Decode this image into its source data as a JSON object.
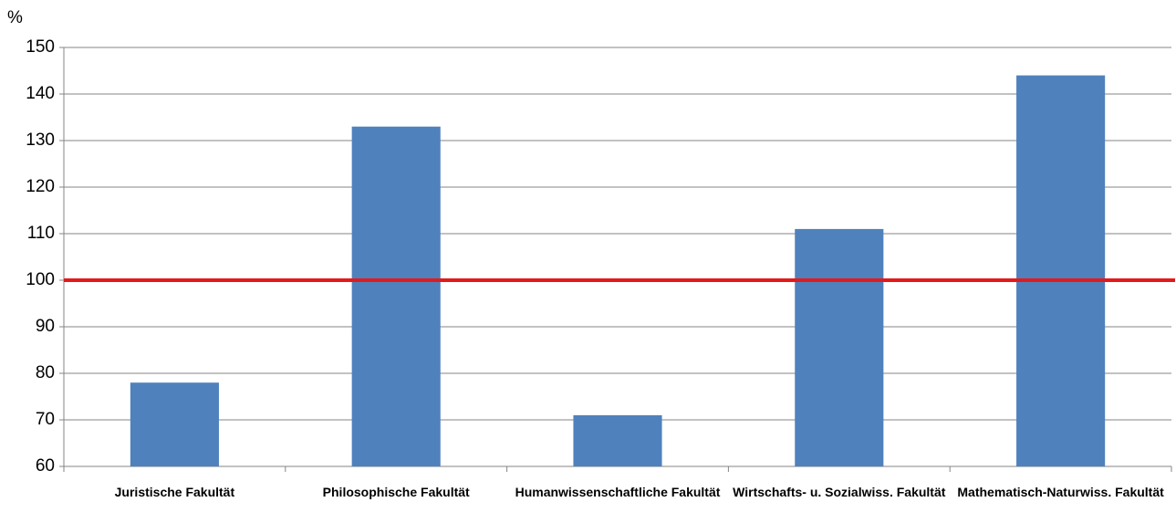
{
  "chart_data": {
    "type": "bar",
    "y_axis_label": "%",
    "categories": [
      "Juristische Fakultät",
      "Philosophische Fakultät",
      "Humanwissenschaftliche Fakultät",
      "Wirtschafts- u. Sozialwiss. Fakultät",
      "Mathematisch-Naturwiss. Fakultät"
    ],
    "values": [
      78,
      133,
      71,
      111,
      144
    ],
    "color": "#4f81bd",
    "ylim": [
      60,
      150
    ],
    "yticks": [
      60,
      70,
      80,
      90,
      100,
      110,
      120,
      130,
      140,
      150
    ],
    "grid": true,
    "reference_line": {
      "value": 100,
      "color": "#e31a1c"
    }
  }
}
